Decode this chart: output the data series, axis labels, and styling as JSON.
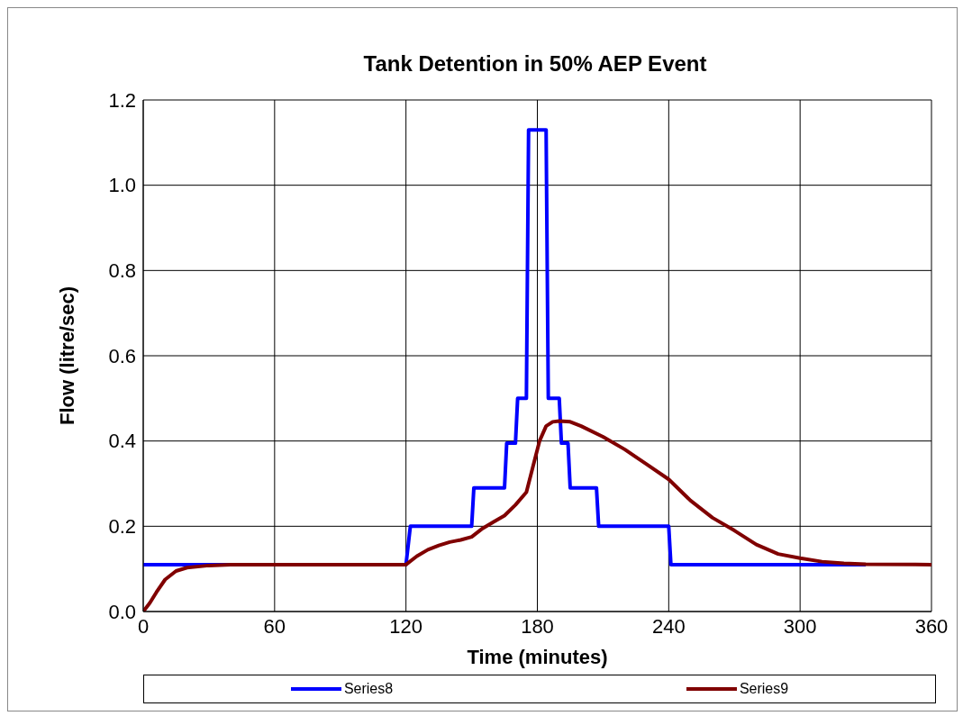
{
  "chart_data": {
    "type": "line",
    "title": "Tank Detention in 50% AEP Event",
    "xlabel": "Time (minutes)",
    "ylabel": "Flow (litre/sec)",
    "xlim": [
      0,
      360
    ],
    "xticks": [
      0,
      60,
      120,
      180,
      240,
      300,
      360
    ],
    "ylim": [
      0,
      1.2
    ],
    "yticks": [
      {
        "value": 0,
        "label": "0.0"
      },
      {
        "value": 0.2,
        "label": "0.2"
      },
      {
        "value": 0.4,
        "label": "0.4"
      },
      {
        "value": 0.6,
        "label": "0.6"
      },
      {
        "value": 0.8,
        "label": "0.8"
      },
      {
        "value": 1,
        "label": "1.0"
      },
      {
        "value": 1.2,
        "label": "1.2"
      }
    ],
    "grid": true,
    "legend": "bottom",
    "marker": "none",
    "line_style": "solid",
    "series": [
      {
        "name": "Series8",
        "color": "#0000ff",
        "x": [
          0,
          120,
          122,
          150,
          151,
          165,
          166,
          170,
          171,
          175,
          176,
          184,
          185,
          190,
          191,
          194,
          195,
          207,
          208,
          240,
          241,
          330
        ],
        "values": [
          0.11,
          0.11,
          0.2,
          0.2,
          0.29,
          0.29,
          0.395,
          0.395,
          0.5,
          0.5,
          1.13,
          1.13,
          0.5,
          0.5,
          0.395,
          0.395,
          0.29,
          0.29,
          0.2,
          0.2,
          0.11,
          0.11
        ]
      },
      {
        "name": "Series9",
        "color": "#800000",
        "x": [
          0,
          3,
          6,
          10,
          15,
          20,
          30,
          40,
          120,
          125,
          130,
          135,
          140,
          145,
          150,
          155,
          160,
          165,
          170,
          175,
          178,
          181,
          184,
          187,
          190,
          195,
          200,
          210,
          220,
          230,
          240,
          250,
          260,
          270,
          280,
          290,
          300,
          310,
          320,
          330,
          360
        ],
        "values": [
          0,
          0.02,
          0.045,
          0.075,
          0.095,
          0.103,
          0.108,
          0.11,
          0.11,
          0.13,
          0.145,
          0.155,
          0.163,
          0.168,
          0.175,
          0.195,
          0.21,
          0.225,
          0.25,
          0.28,
          0.34,
          0.4,
          0.435,
          0.445,
          0.447,
          0.445,
          0.435,
          0.41,
          0.38,
          0.345,
          0.31,
          0.26,
          0.22,
          0.19,
          0.157,
          0.135,
          0.125,
          0.117,
          0.113,
          0.111,
          0.11
        ]
      }
    ]
  }
}
